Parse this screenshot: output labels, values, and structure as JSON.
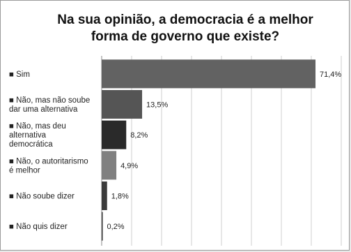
{
  "chart_data": {
    "type": "bar",
    "orientation": "horizontal",
    "title": "Na sua opinião, a democracia é a melhor forma de governo que existe?",
    "categories": [
      "Sim",
      "Não, mas não soube dar uma alternativa",
      "Não, mas deu alternativa democrática",
      "Não, o autoritarismo é melhor",
      "Não soube dizer",
      "Não quis dizer"
    ],
    "values": [
      71.4,
      13.5,
      8.2,
      4.9,
      1.8,
      0.2
    ],
    "value_labels": [
      "71,4%",
      "13,5%",
      "8,2%",
      "4,9%",
      "1,8%",
      "0,2%"
    ],
    "bar_colors": [
      "#626262",
      "#555555",
      "#2a2a2a",
      "#808080",
      "#3a3a3a",
      "#333333"
    ],
    "xlim": [
      0,
      80
    ],
    "grid": true,
    "legend_marker": "■"
  }
}
